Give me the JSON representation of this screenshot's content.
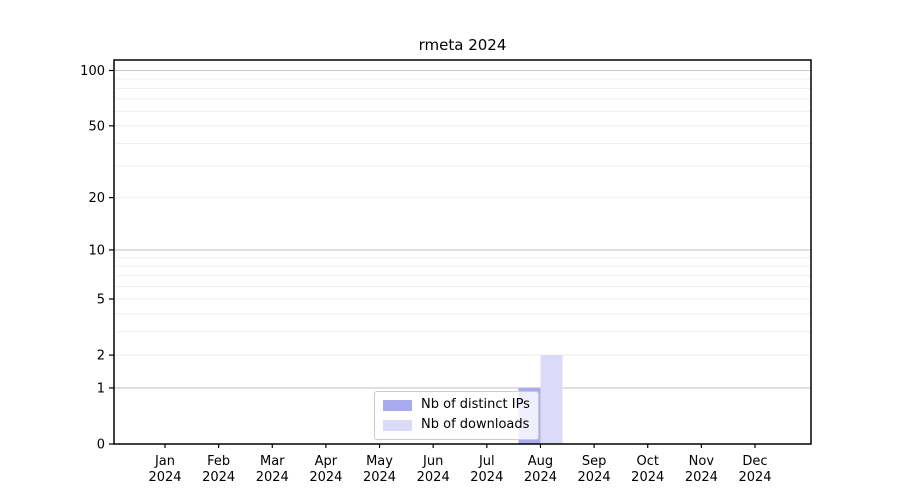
{
  "title": "rmeta 2024",
  "chart_data": {
    "type": "bar",
    "title": "rmeta 2024",
    "scale": "log1p",
    "grid": true,
    "background": "#ffffff",
    "categories": [
      "Jan 2024",
      "Feb 2024",
      "Mar 2024",
      "Apr 2024",
      "May 2024",
      "Jun 2024",
      "Jul 2024",
      "Aug 2024",
      "Sep 2024",
      "Oct 2024",
      "Nov 2024",
      "Dec 2024"
    ],
    "x_tick_months": [
      "Jan",
      "Feb",
      "Mar",
      "Apr",
      "May",
      "Jun",
      "Jul",
      "Aug",
      "Sep",
      "Oct",
      "Nov",
      "Dec"
    ],
    "x_tick_year": "2024",
    "series": [
      {
        "name": "Nb of distinct IPs",
        "color": "#aaaaee",
        "values": [
          0,
          0,
          0,
          0,
          0,
          0,
          0,
          1,
          0,
          0,
          0,
          0
        ]
      },
      {
        "name": "Nb of downloads",
        "color": "#dbdbf8",
        "values": [
          0,
          0,
          0,
          0,
          0,
          0,
          0,
          2,
          0,
          0,
          0,
          0
        ]
      }
    ],
    "y_tick_values": [
      0,
      1,
      2,
      5,
      10,
      20,
      50,
      100
    ],
    "minor_grid_values": [
      2,
      3,
      4,
      5,
      6,
      7,
      8,
      9,
      20,
      30,
      40,
      50,
      60,
      70,
      80,
      90
    ],
    "decade_grid_values": [
      1,
      10,
      100
    ],
    "ylim": [
      0,
      114
    ],
    "legend_position": "lower center",
    "colors": {
      "axis": "#000000",
      "tick_label": "#000000",
      "grid_minor": "#efefef",
      "grid_decade": "#c8c8c8"
    }
  }
}
